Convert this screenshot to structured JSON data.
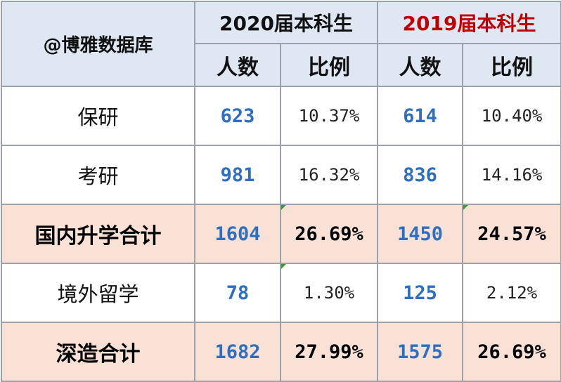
{
  "header": {
    "brand": "@博雅数据库",
    "group_2020": "2020届本科生",
    "group_2019": "2019届本科生",
    "col_count": "人数",
    "col_ratio": "比例",
    "group_2019_color": "#c00000"
  },
  "rows": [
    {
      "label": "保研",
      "count_2020": "623",
      "ratio_2020": "10.37%",
      "count_2019": "614",
      "ratio_2019": "10.40%"
    },
    {
      "label": "考研",
      "count_2020": "981",
      "ratio_2020": "16.32%",
      "count_2019": "836",
      "ratio_2019": "14.16%"
    },
    {
      "label": "国内升学合计",
      "count_2020": "1604",
      "ratio_2020": "26.69%",
      "count_2019": "1450",
      "ratio_2019": "24.57%"
    },
    {
      "label": "境外留学",
      "count_2020": "78",
      "ratio_2020": "1.30%",
      "count_2019": "125",
      "ratio_2019": "2.12%"
    },
    {
      "label": "深造合计",
      "count_2020": "1682",
      "ratio_2020": "27.99%",
      "count_2019": "1575",
      "ratio_2019": "26.69%"
    }
  ],
  "colors": {
    "header_bg": "#dfe7f3",
    "total_row_bg": "#f9e1d6",
    "count_text": "#2f6fbf"
  }
}
